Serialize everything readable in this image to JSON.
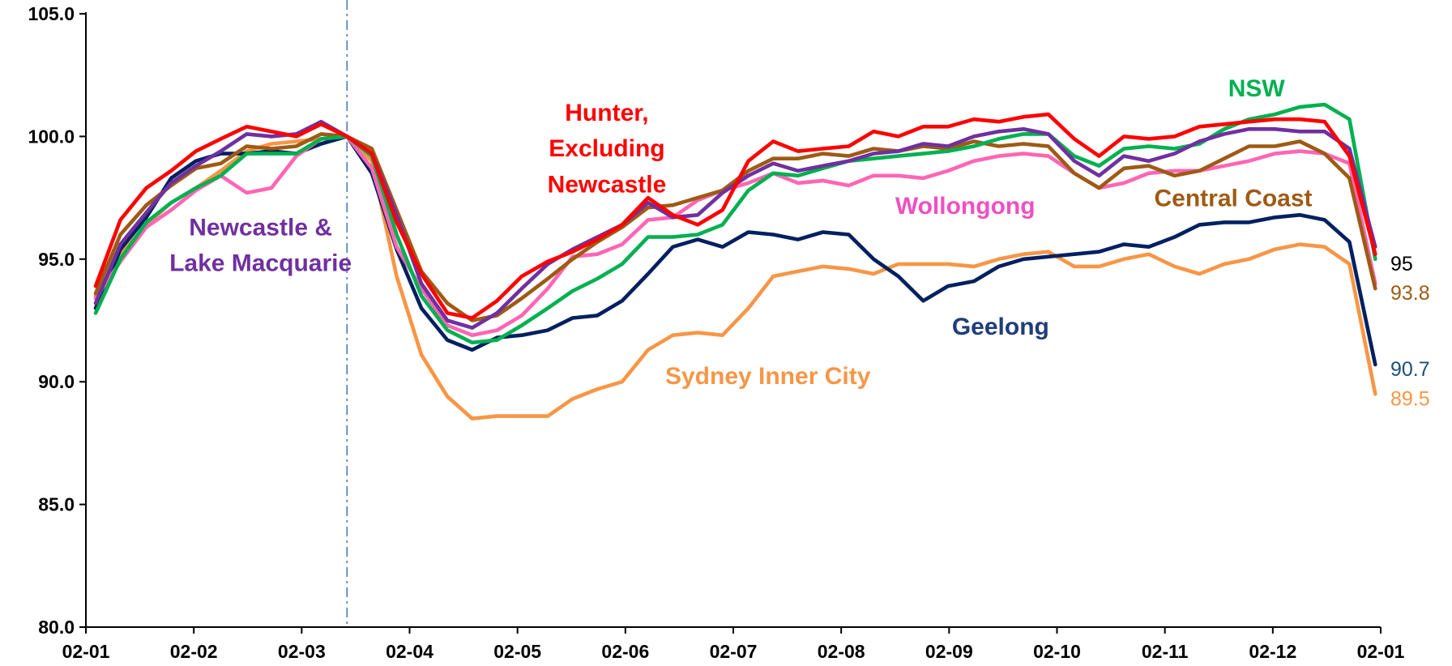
{
  "chart_data": {
    "type": "line",
    "x": [
      0.09,
      0.32,
      0.56,
      0.79,
      1.02,
      1.25,
      1.49,
      1.72,
      1.95,
      2.18,
      2.42,
      2.65,
      2.88,
      3.11,
      3.35,
      3.58,
      3.81,
      4.04,
      4.28,
      4.51,
      4.74,
      4.97,
      5.21,
      5.44,
      5.67,
      5.9,
      6.14,
      6.37,
      6.6,
      6.83,
      7.07,
      7.3,
      7.53,
      7.76,
      7.99,
      8.23,
      8.46,
      8.69,
      8.92,
      9.16,
      9.39,
      9.62,
      9.85,
      10.09,
      10.32,
      10.55,
      10.78,
      11.02,
      11.25,
      11.48,
      11.71,
      11.95
    ],
    "xlim": [
      0,
      12
    ],
    "xticks": [
      {
        "value": 0,
        "label": "02-01"
      },
      {
        "value": 1,
        "label": "02-02"
      },
      {
        "value": 2,
        "label": "02-03"
      },
      {
        "value": 3,
        "label": "02-04"
      },
      {
        "value": 4,
        "label": "02-05"
      },
      {
        "value": 5,
        "label": "02-06"
      },
      {
        "value": 6,
        "label": "02-07"
      },
      {
        "value": 7,
        "label": "02-08"
      },
      {
        "value": 8,
        "label": "02-09"
      },
      {
        "value": 9,
        "label": "02-10"
      },
      {
        "value": 10,
        "label": "02-11"
      },
      {
        "value": 11,
        "label": "02-12"
      },
      {
        "value": 12,
        "label": "02-01"
      }
    ],
    "ylim": [
      80,
      105
    ],
    "yticks": [
      {
        "value": 80,
        "label": "80.0"
      },
      {
        "value": 85,
        "label": "85.0"
      },
      {
        "value": 90,
        "label": "90.0"
      },
      {
        "value": 95,
        "label": "95.0"
      },
      {
        "value": 100,
        "label": "100.0"
      },
      {
        "value": 105,
        "label": "105.0"
      }
    ],
    "reference_x": 2.42,
    "reference_color": "#4a7ab5",
    "series": [
      {
        "name": [
          "Sydney Inner City"
        ],
        "color": "#f79646",
        "label_color": "#f79646",
        "label_last": true,
        "last_label_color": "#f79646",
        "values": [
          93.5,
          95.2,
          96.4,
          97.3,
          97.9,
          98.6,
          99.4,
          99.7,
          99.8,
          99.9,
          100.0,
          99.0,
          94.3,
          91.1,
          89.4,
          88.5,
          88.6,
          88.6,
          88.6,
          89.3,
          89.7,
          90.0,
          91.3,
          91.9,
          92.0,
          91.9,
          93.0,
          94.3,
          94.5,
          94.7,
          94.6,
          94.4,
          94.8,
          94.8,
          94.8,
          94.7,
          95.0,
          95.2,
          95.3,
          94.7,
          94.7,
          95.0,
          95.2,
          94.7,
          94.4,
          94.8,
          95.0,
          95.4,
          95.6,
          95.5,
          94.8,
          89.5
        ]
      },
      {
        "name": [
          "Geelong"
        ],
        "color": "#002060",
        "label_color": "#1f3d7a",
        "label_last": true,
        "last_label_color": "#1f4e79",
        "values": [
          93.0,
          95.4,
          96.7,
          98.3,
          99.0,
          99.3,
          99.3,
          99.4,
          99.3,
          99.7,
          100.0,
          98.5,
          95.4,
          93.0,
          91.7,
          91.3,
          91.8,
          91.9,
          92.1,
          92.6,
          92.7,
          93.3,
          94.4,
          95.5,
          95.8,
          95.5,
          96.1,
          96.0,
          95.8,
          96.1,
          96.0,
          95.0,
          94.3,
          93.3,
          93.9,
          94.1,
          94.7,
          95.0,
          95.1,
          95.2,
          95.3,
          95.6,
          95.5,
          95.9,
          96.4,
          96.5,
          96.5,
          96.7,
          96.8,
          96.6,
          95.7,
          90.7
        ]
      },
      {
        "name": [
          "Wollongong"
        ],
        "color": "#ff66b3",
        "label_color": "#f050c0",
        "label_last": false,
        "values": [
          93.4,
          94.9,
          96.3,
          97.0,
          97.8,
          98.4,
          97.7,
          97.9,
          99.2,
          99.9,
          100.0,
          98.7,
          95.5,
          93.8,
          92.3,
          91.9,
          92.1,
          92.7,
          93.8,
          95.1,
          95.2,
          95.6,
          96.6,
          96.7,
          97.4,
          97.8,
          98.1,
          98.5,
          98.1,
          98.2,
          98.0,
          98.4,
          98.4,
          98.3,
          98.6,
          99.0,
          99.2,
          99.3,
          99.2,
          98.5,
          97.9,
          98.1,
          98.5,
          98.6,
          98.6,
          98.8,
          99.0,
          99.3,
          99.4,
          99.3,
          98.9,
          94.0
        ]
      },
      {
        "name": [
          "Central Coast"
        ],
        "color": "#9e5a14",
        "label_color": "#9e5a14",
        "label_last": true,
        "last_label_color": "#9e5a14",
        "values": [
          93.6,
          96.0,
          97.2,
          98.0,
          98.7,
          98.9,
          99.6,
          99.5,
          99.6,
          100.1,
          100.0,
          99.5,
          97.0,
          94.5,
          93.2,
          92.5,
          92.7,
          93.4,
          94.2,
          95.0,
          95.7,
          96.3,
          97.1,
          97.2,
          97.5,
          97.8,
          98.6,
          99.1,
          99.1,
          99.3,
          99.2,
          99.5,
          99.4,
          99.6,
          99.5,
          99.8,
          99.6,
          99.7,
          99.6,
          98.5,
          97.9,
          98.7,
          98.8,
          98.4,
          98.6,
          99.1,
          99.6,
          99.6,
          99.8,
          99.3,
          98.3,
          93.8
        ]
      },
      {
        "name": [
          "NSW"
        ],
        "color": "#00b050",
        "label_color": "#00b050",
        "label_last": true,
        "last_label_color": "#000000",
        "values": [
          92.8,
          95.0,
          96.5,
          97.3,
          97.9,
          98.4,
          99.3,
          99.3,
          99.3,
          99.9,
          100.0,
          99.2,
          96.0,
          93.5,
          92.1,
          91.6,
          91.7,
          92.3,
          93.0,
          93.7,
          94.2,
          94.8,
          95.9,
          95.9,
          96.0,
          96.4,
          97.8,
          98.5,
          98.4,
          98.7,
          99.0,
          99.1,
          99.2,
          99.3,
          99.4,
          99.6,
          99.9,
          100.1,
          100.1,
          99.2,
          98.8,
          99.5,
          99.6,
          99.5,
          99.7,
          100.3,
          100.7,
          100.9,
          101.2,
          101.3,
          100.7,
          95
        ]
      },
      {
        "name": [
          "Newcastle &",
          "Lake Macquarie"
        ],
        "color": "#7030a0",
        "label_color": "#7030a0",
        "label_last": false,
        "values": [
          93.2,
          95.6,
          96.9,
          98.1,
          98.8,
          99.4,
          100.1,
          100.0,
          100.1,
          100.6,
          100.0,
          99.3,
          96.8,
          94.0,
          92.5,
          92.2,
          92.8,
          93.8,
          94.8,
          95.4,
          95.9,
          96.4,
          97.3,
          96.7,
          96.8,
          97.7,
          98.4,
          98.9,
          98.6,
          98.8,
          99.0,
          99.3,
          99.4,
          99.7,
          99.6,
          100.0,
          100.2,
          100.3,
          100.1,
          99.0,
          98.4,
          99.2,
          99.0,
          99.3,
          99.8,
          100.1,
          100.3,
          100.3,
          100.2,
          100.2,
          99.5,
          95.5
        ]
      },
      {
        "name": [
          "Hunter,",
          "Excluding",
          "Newcastle"
        ],
        "color": "#ff0000",
        "label_color": "#ff0000",
        "label_last": false,
        "values": [
          93.9,
          96.6,
          97.9,
          98.6,
          99.4,
          99.9,
          100.4,
          100.2,
          100.0,
          100.5,
          100.0,
          99.3,
          96.5,
          94.4,
          92.8,
          92.6,
          93.3,
          94.3,
          94.9,
          95.3,
          95.8,
          96.4,
          97.5,
          96.8,
          96.4,
          97.0,
          99.0,
          99.8,
          99.4,
          99.5,
          99.6,
          100.2,
          100.0,
          100.4,
          100.4,
          100.7,
          100.6,
          100.8,
          100.9,
          99.9,
          99.2,
          100.0,
          99.9,
          100.0,
          100.4,
          100.5,
          100.6,
          100.7,
          100.7,
          100.6,
          99.2,
          95.2
        ]
      }
    ]
  }
}
